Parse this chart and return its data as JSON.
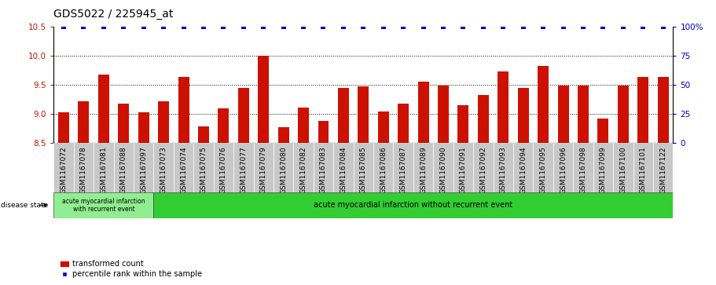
{
  "title": "GDS5022 / 225945_at",
  "samples": [
    "GSM1167072",
    "GSM1167078",
    "GSM1167081",
    "GSM1167088",
    "GSM1167097",
    "GSM1167073",
    "GSM1167074",
    "GSM1167075",
    "GSM1167076",
    "GSM1167077",
    "GSM1167079",
    "GSM1167080",
    "GSM1167082",
    "GSM1167083",
    "GSM1167084",
    "GSM1167085",
    "GSM1167086",
    "GSM1167087",
    "GSM1167089",
    "GSM1167090",
    "GSM1167091",
    "GSM1167092",
    "GSM1167093",
    "GSM1167094",
    "GSM1167095",
    "GSM1167096",
    "GSM1167098",
    "GSM1167099",
    "GSM1167100",
    "GSM1167101",
    "GSM1167122"
  ],
  "bar_values": [
    9.03,
    9.22,
    9.67,
    9.18,
    9.03,
    9.22,
    9.64,
    8.78,
    9.09,
    9.45,
    10.0,
    8.77,
    9.1,
    8.88,
    9.45,
    9.47,
    9.04,
    9.18,
    9.55,
    9.48,
    9.15,
    9.32,
    9.73,
    9.44,
    9.83,
    9.48,
    9.48,
    8.92,
    9.48,
    9.63,
    9.63
  ],
  "percentile_values": [
    100,
    100,
    100,
    100,
    100,
    100,
    100,
    100,
    100,
    100,
    100,
    100,
    100,
    100,
    100,
    100,
    100,
    100,
    100,
    100,
    100,
    100,
    100,
    100,
    100,
    100,
    100,
    100,
    100,
    100,
    100
  ],
  "group1_count": 5,
  "group1_label": "acute myocardial infarction\nwith recurrent event",
  "group2_label": "acute myocardial infarction without recurrent event",
  "disease_state_label": "disease state",
  "ylim_left": [
    8.5,
    10.5
  ],
  "ylim_right": [
    0,
    100
  ],
  "yticks_left": [
    8.5,
    9.0,
    9.5,
    10.0,
    10.5
  ],
  "yticks_right": [
    0,
    25,
    50,
    75,
    100
  ],
  "bar_color": "#cc1100",
  "dot_color": "#0000cc",
  "group1_bg": "#90ee90",
  "group2_bg": "#32cd32",
  "legend_label_bar": "transformed count",
  "legend_label_dot": "percentile rank within the sample",
  "bg_color": "#c8c8c8",
  "title_fontsize": 10,
  "tick_fontsize": 6.5,
  "label_fontsize": 7.5
}
